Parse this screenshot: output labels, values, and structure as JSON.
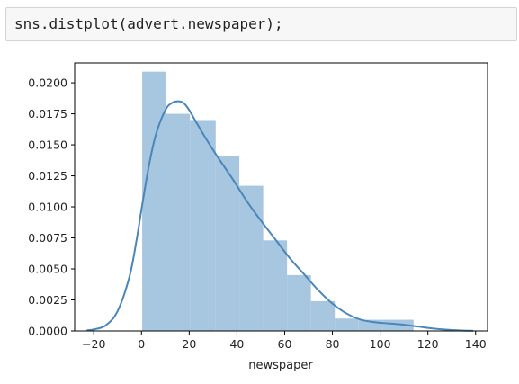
{
  "cell": {
    "code": "sns.distplot(advert.newspaper);"
  },
  "colors": {
    "bar_fill": "#a7c6e0",
    "kde_line": "#4a86b8",
    "axis": "#000000"
  },
  "chart_data": {
    "type": "bar",
    "title": "",
    "xlabel": "newspaper",
    "ylabel": "",
    "xlim": [
      -28,
      145
    ],
    "ylim": [
      0,
      0.0216
    ],
    "xticks": [
      -20,
      0,
      20,
      40,
      60,
      80,
      100,
      120,
      140
    ],
    "xtick_labels": [
      "−20",
      "0",
      "20",
      "40",
      "60",
      "80",
      "100",
      "120",
      "140"
    ],
    "yticks": [
      0.0,
      0.0025,
      0.005,
      0.0075,
      0.01,
      0.0125,
      0.015,
      0.0175,
      0.02
    ],
    "ytick_labels": [
      "0.0000",
      "0.0025",
      "0.0050",
      "0.0075",
      "0.0100",
      "0.0125",
      "0.0150",
      "0.0175",
      "0.0200"
    ],
    "histogram": {
      "bin_edges": [
        0.3,
        10.2,
        20.3,
        31.1,
        41.0,
        51.0,
        61.0,
        71.0,
        81.0,
        91.0,
        101.0,
        114.0
      ],
      "densities": [
        0.0209,
        0.0175,
        0.017,
        0.0141,
        0.0117,
        0.0073,
        0.0045,
        0.0024,
        0.001,
        0.0009,
        0.0009
      ]
    },
    "kde": {
      "x": [
        -23,
        -20,
        -15,
        -10,
        -5,
        -2,
        0,
        3,
        6,
        10,
        13,
        16,
        18,
        20,
        23,
        27,
        32,
        38,
        44,
        50,
        56,
        62,
        68,
        74,
        80,
        86,
        92,
        98,
        104,
        110,
        116,
        122,
        128,
        134,
        139
      ],
      "y": [
        5e-05,
        0.00012,
        0.00045,
        0.0016,
        0.0044,
        0.0074,
        0.0098,
        0.0132,
        0.0158,
        0.0178,
        0.0184,
        0.0185,
        0.0183,
        0.0178,
        0.0168,
        0.0155,
        0.014,
        0.0123,
        0.0105,
        0.0089,
        0.0074,
        0.0059,
        0.0046,
        0.0033,
        0.0022,
        0.0014,
        0.0009,
        0.0007,
        0.0006,
        0.0005,
        0.00035,
        0.0002,
        0.0001,
        4e-05,
        1e-05
      ]
    }
  }
}
